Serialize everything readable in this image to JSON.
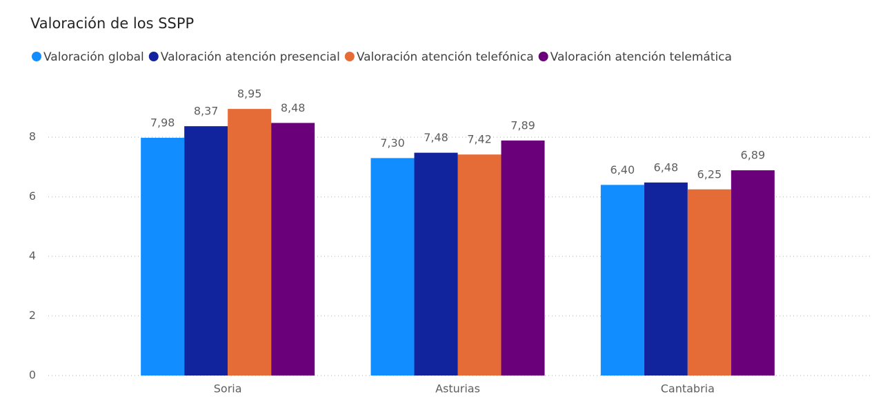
{
  "chart_data": {
    "type": "bar",
    "title": "Valoración de los SSPP",
    "categories": [
      "Soria",
      "Asturias",
      "Cantabria"
    ],
    "series": [
      {
        "name": "Valoración global",
        "color": "#118DFF",
        "values": [
          7.98,
          7.3,
          6.4
        ],
        "value_labels": [
          "7,98",
          "7,30",
          "6,40"
        ]
      },
      {
        "name": "Valoración atención presencial",
        "color": "#12239E",
        "values": [
          8.37,
          7.48,
          6.48
        ],
        "value_labels": [
          "8,37",
          "7,48",
          "6,48"
        ]
      },
      {
        "name": "Valoración atención telefónica",
        "color": "#E66C37",
        "values": [
          8.95,
          7.42,
          6.25
        ],
        "value_labels": [
          "8,95",
          "7,42",
          "6,25"
        ]
      },
      {
        "name": "Valoración atención telemática",
        "color": "#6B007B",
        "values": [
          8.48,
          7.89,
          6.89
        ],
        "value_labels": [
          "8,48",
          "7,89",
          "6,89"
        ]
      }
    ],
    "ylim": [
      0,
      9.6
    ],
    "yticks": [
      0,
      2,
      4,
      6,
      8
    ],
    "grid": true,
    "legend": "top-left"
  }
}
